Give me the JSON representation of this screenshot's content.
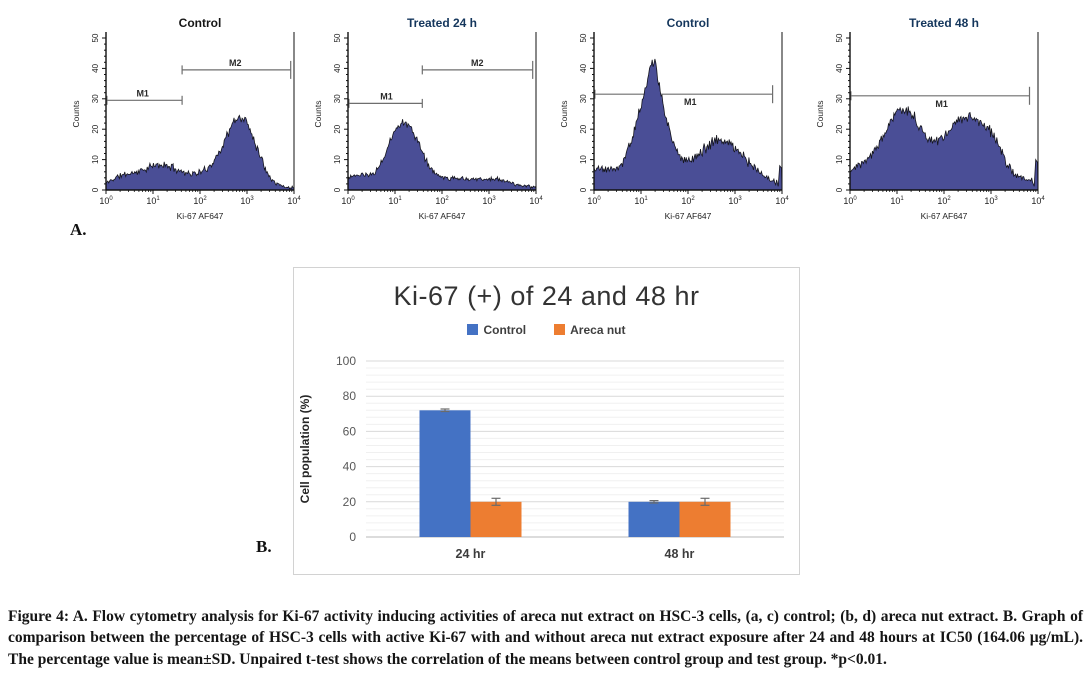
{
  "labels": {
    "panel_a": "A.",
    "panel_b": "B."
  },
  "colors": {
    "histogram_fill": "#4a4e96",
    "histogram_stroke": "#15151d",
    "marker_line": "#6e6e6e",
    "bar_blue": "#4472c4",
    "bar_orange": "#ed7d31"
  },
  "chart_data": [
    {
      "id": "flow_control_24",
      "type": "histogram",
      "title": "Control",
      "title_color": "#161616",
      "xlabel": "Ki-67 AF647",
      "ylabel": "Counts",
      "ylim": [
        0,
        50
      ],
      "y_ticks": [
        0,
        10,
        20,
        30,
        40,
        50
      ],
      "x_ticks": [
        "10^0",
        "10^1",
        "10^2",
        "10^3",
        "10^4"
      ],
      "x_scale": "log_decades_0_to_4",
      "markers": [
        {
          "name": "M1",
          "y": 29.5,
          "from": 0.02,
          "to": 1.62,
          "label_x": 0.78,
          "label_side": "above"
        },
        {
          "name": "M2",
          "y": 39.5,
          "from": 1.62,
          "to": 3.93,
          "label_x": 2.75,
          "label_side": "above"
        }
      ],
      "peaks": [
        {
          "c": 1.15,
          "s": 0.48,
          "h": 7.5
        },
        {
          "c": 2.9,
          "s": 0.32,
          "h": 19
        },
        {
          "c": 2.5,
          "s": 0.45,
          "h": 6
        },
        {
          "c": 0.3,
          "s": 0.25,
          "h": 2.5
        }
      ],
      "base": 0.6,
      "noise": 2.0,
      "seed": 11
    },
    {
      "id": "flow_treated_24",
      "type": "histogram",
      "title": "Treated 24 h",
      "title_color": "#14365c",
      "xlabel": "Ki-67 AF647",
      "ylabel": "Counts",
      "ylim": [
        0,
        50
      ],
      "y_ticks": [
        0,
        10,
        20,
        30,
        40,
        50
      ],
      "x_ticks": [
        "10^0",
        "10^1",
        "10^2",
        "10^3",
        "10^4"
      ],
      "x_scale": "log_decades_0_to_4",
      "markers": [
        {
          "name": "M1",
          "y": 28.5,
          "from": 0.02,
          "to": 1.58,
          "label_x": 0.82,
          "label_side": "above"
        },
        {
          "name": "M2",
          "y": 39.5,
          "from": 1.58,
          "to": 3.93,
          "label_x": 2.75,
          "label_side": "above"
        }
      ],
      "peaks": [
        {
          "c": 1.18,
          "s": 0.33,
          "h": 21
        },
        {
          "c": 0.15,
          "s": 0.3,
          "h": 4
        },
        {
          "c": 2.35,
          "s": 0.75,
          "h": 3.2
        },
        {
          "c": 3.2,
          "s": 0.3,
          "h": 1.2
        }
      ],
      "base": 0.5,
      "noise": 1.8,
      "seed": 23
    },
    {
      "id": "flow_control_48",
      "type": "histogram",
      "title": "Control",
      "title_color": "#14365c",
      "xlabel": "Ki-67 AF647",
      "ylabel": "Counts",
      "ylim": [
        0,
        50
      ],
      "y_ticks": [
        0,
        10,
        20,
        30,
        40,
        50
      ],
      "x_ticks": [
        "10^0",
        "10^1",
        "10^2",
        "10^3",
        "10^4"
      ],
      "x_scale": "log_decades_0_to_4",
      "markers": [
        {
          "name": "M1",
          "y": 31.5,
          "from": 0.02,
          "to": 3.8,
          "label_x": 2.05,
          "label_side": "below"
        }
      ],
      "peaks": [
        {
          "c": 1.22,
          "s": 0.34,
          "h": 32
        },
        {
          "c": 1.27,
          "s": 0.1,
          "h": 9
        },
        {
          "c": 2.7,
          "s": 0.52,
          "h": 15
        },
        {
          "c": 0.12,
          "s": 0.3,
          "h": 5.5
        }
      ],
      "base": 1.4,
      "noise": 2.3,
      "seed": 5,
      "edge_spike": 8
    },
    {
      "id": "flow_treated_48",
      "type": "histogram",
      "title": "Treated 48 h",
      "title_color": "#14365c",
      "xlabel": "Ki-67 AF647",
      "ylabel": "Counts",
      "ylim": [
        0,
        50
      ],
      "y_ticks": [
        0,
        10,
        20,
        30,
        40,
        50
      ],
      "x_ticks": [
        "10^0",
        "10^1",
        "10^2",
        "10^3",
        "10^4"
      ],
      "x_scale": "log_decades_0_to_4",
      "markers": [
        {
          "name": "M1",
          "y": 31,
          "from": 0.02,
          "to": 3.82,
          "label_x": 1.95,
          "label_side": "below"
        }
      ],
      "peaks": [
        {
          "c": 1.1,
          "s": 0.38,
          "h": 20
        },
        {
          "c": 2.5,
          "s": 0.42,
          "h": 16
        },
        {
          "c": 1.95,
          "s": 1.0,
          "h": 7
        },
        {
          "c": 0.2,
          "s": 0.3,
          "h": 4
        },
        {
          "c": 3.05,
          "s": 0.22,
          "h": 5
        }
      ],
      "base": 1.8,
      "noise": 2.3,
      "seed": 17,
      "edge_spike": 10
    },
    {
      "id": "ki67_bar",
      "type": "bar",
      "title": "Ki-67 (+) of 24 and 48 hr",
      "categories": [
        "24 hr",
        "48 hr"
      ],
      "series": [
        {
          "name": "Control",
          "color": "#4472c4",
          "values": [
            72,
            20
          ],
          "errors": [
            0.7,
            0.7
          ]
        },
        {
          "name": "Areca nut",
          "color": "#ed7d31",
          "values": [
            20,
            20
          ],
          "errors": [
            2,
            2
          ]
        }
      ],
      "xlabel": "",
      "ylabel": "Cell population (%)",
      "ylim": [
        0,
        100
      ],
      "y_ticks": [
        0,
        20,
        40,
        60,
        80,
        100
      ],
      "y_major": 20,
      "y_minor": 4,
      "grid": true,
      "legend_position": "top"
    }
  ],
  "caption": "Figure 4: A. Flow cytometry analysis for Ki-67 activity inducing activities of areca nut extract on HSC-3 cells, (a, c) control; (b, d) areca nut extract. B. Graph of comparison between the percentage of HSC-3 cells with active Ki-67 with and without areca nut extract exposure after 24 and 48 hours at IC50 (164.06 µg/mL). The percentage value is mean±SD. Unpaired t-test shows the correlation of the means between control group and test group. *p<0.01."
}
